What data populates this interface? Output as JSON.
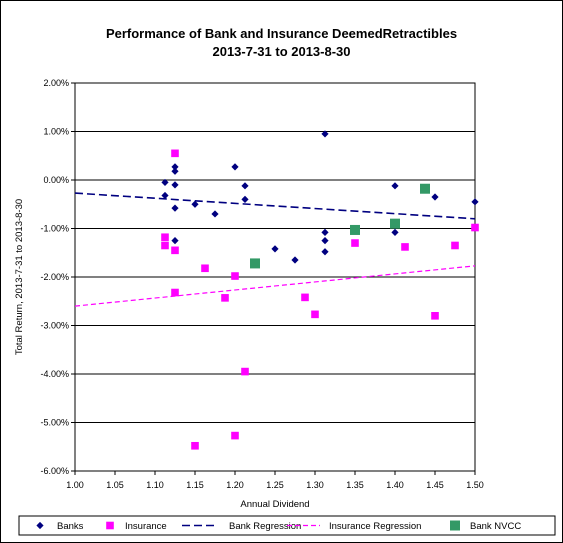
{
  "chart_data": {
    "type": "scatter",
    "title": "Performance of Bank and Insurance DeemedRetractibles",
    "subtitle": "2013-7-31 to 2013-8-30",
    "xlabel": "Annual Dividend",
    "ylabel": "Total Return, 2013-7-31 to 2013-8-30",
    "xlim": [
      1.0,
      1.5
    ],
    "ylim": [
      -6.0,
      2.0
    ],
    "x_ticks": [
      "1.00",
      "1.05",
      "1.10",
      "1.15",
      "1.20",
      "1.25",
      "1.30",
      "1.35",
      "1.40",
      "1.45",
      "1.50"
    ],
    "y_ticks": [
      "2.00%",
      "1.00%",
      "0.00%",
      "-1.00%",
      "-2.00%",
      "-3.00%",
      "-4.00%",
      "-5.00%",
      "-6.00%"
    ],
    "grid": "horizontal",
    "legend_position": "bottom",
    "series": [
      {
        "name": "Banks",
        "marker": "diamond",
        "color": "#000080",
        "points": [
          [
            1.1125,
            -0.05
          ],
          [
            1.1125,
            -0.32
          ],
          [
            1.125,
            0.27
          ],
          [
            1.125,
            0.18
          ],
          [
            1.125,
            -0.1
          ],
          [
            1.125,
            -0.58
          ],
          [
            1.125,
            -1.25
          ],
          [
            1.15,
            -0.5
          ],
          [
            1.175,
            -0.7
          ],
          [
            1.2,
            0.27
          ],
          [
            1.2125,
            -0.12
          ],
          [
            1.2125,
            -0.4
          ],
          [
            1.25,
            -1.42
          ],
          [
            1.275,
            -1.65
          ],
          [
            1.3125,
            0.95
          ],
          [
            1.3125,
            -1.08
          ],
          [
            1.3125,
            -1.25
          ],
          [
            1.3125,
            -1.48
          ],
          [
            1.4,
            -0.12
          ],
          [
            1.4,
            -1.08
          ],
          [
            1.45,
            -0.35
          ],
          [
            1.5,
            -0.45
          ]
        ]
      },
      {
        "name": "Insurance",
        "marker": "square",
        "color": "#FF00FF",
        "points": [
          [
            1.1125,
            -1.18
          ],
          [
            1.1125,
            -1.35
          ],
          [
            1.125,
            0.55
          ],
          [
            1.125,
            -1.45
          ],
          [
            1.125,
            -2.32
          ],
          [
            1.15,
            -5.48
          ],
          [
            1.1625,
            -1.82
          ],
          [
            1.1875,
            -2.43
          ],
          [
            1.2,
            -1.98
          ],
          [
            1.2,
            -5.27
          ],
          [
            1.2125,
            -3.95
          ],
          [
            1.2875,
            -2.42
          ],
          [
            1.3,
            -2.77
          ],
          [
            1.35,
            -1.3
          ],
          [
            1.4125,
            -1.38
          ],
          [
            1.45,
            -2.8
          ],
          [
            1.475,
            -1.35
          ],
          [
            1.5,
            -0.98
          ]
        ]
      },
      {
        "name": "Bank Regression",
        "type": "line",
        "style": "dashed",
        "color": "#000080",
        "points": [
          [
            1.0,
            -0.27
          ],
          [
            1.5,
            -0.8
          ]
        ]
      },
      {
        "name": "Insurance Regression",
        "type": "line",
        "style": "dashed",
        "color": "#FF00FF",
        "points": [
          [
            1.0,
            -2.6
          ],
          [
            1.5,
            -1.77
          ]
        ]
      },
      {
        "name": "Bank NVCC",
        "marker": "square",
        "color": "#339966",
        "points": [
          [
            1.225,
            -1.72
          ],
          [
            1.35,
            -1.03
          ],
          [
            1.4,
            -0.9
          ],
          [
            1.4375,
            -0.18
          ]
        ]
      }
    ]
  }
}
